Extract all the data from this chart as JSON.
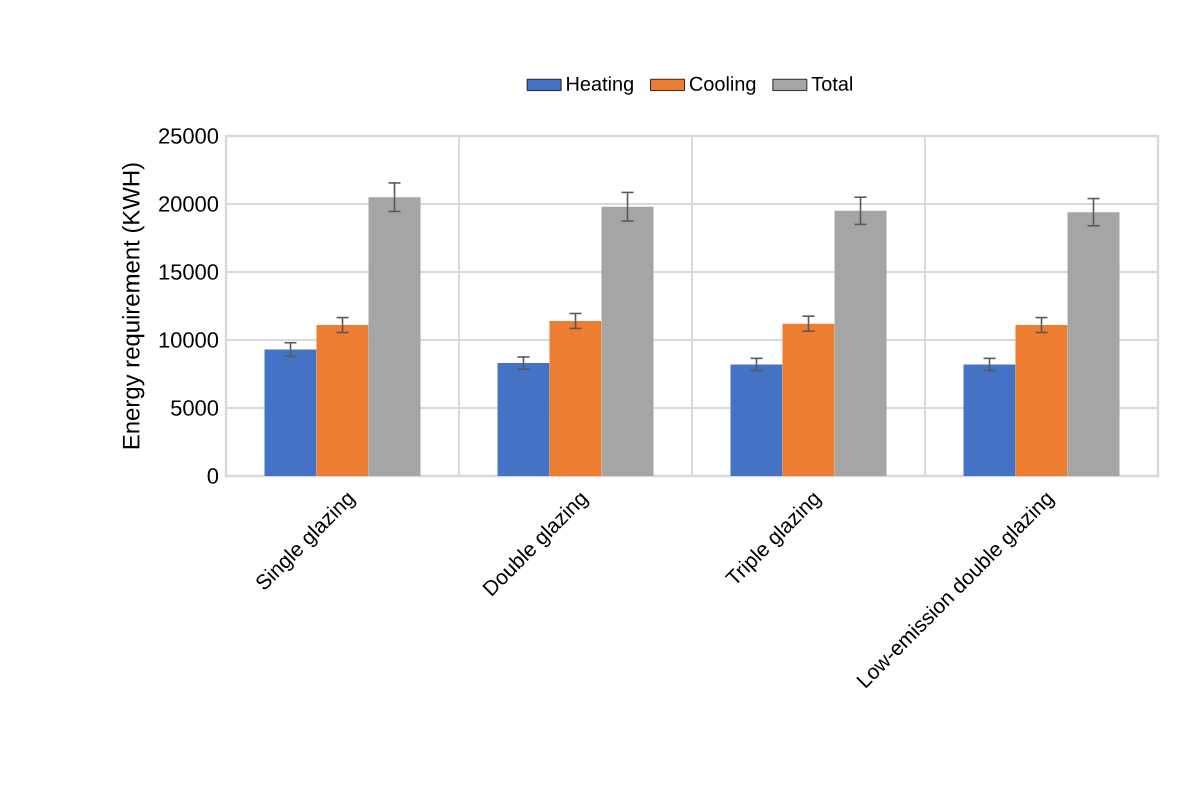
{
  "chart_data": {
    "type": "bar",
    "ylabel": "Energy requirement (KWH)",
    "categories": [
      "Single glazing",
      "Double glazing",
      "Triple glazing",
      "Low-emission double glazing"
    ],
    "series": [
      {
        "name": "Heating",
        "color": "#4472c4",
        "values": [
          9300,
          8300,
          8200,
          8200
        ],
        "errors": [
          500,
          450,
          450,
          450
        ]
      },
      {
        "name": "Cooling",
        "color": "#ed7d31",
        "values": [
          11100,
          11400,
          11200,
          11100
        ],
        "errors": [
          550,
          550,
          550,
          550
        ]
      },
      {
        "name": "Total",
        "color": "#a5a5a5",
        "values": [
          20500,
          19800,
          19500,
          19400
        ],
        "errors": [
          1050,
          1050,
          1000,
          1000
        ]
      }
    ],
    "ylim": [
      0,
      25000
    ],
    "yticks": [
      0,
      5000,
      10000,
      15000,
      20000,
      25000
    ],
    "grid": true,
    "legend": "top"
  }
}
